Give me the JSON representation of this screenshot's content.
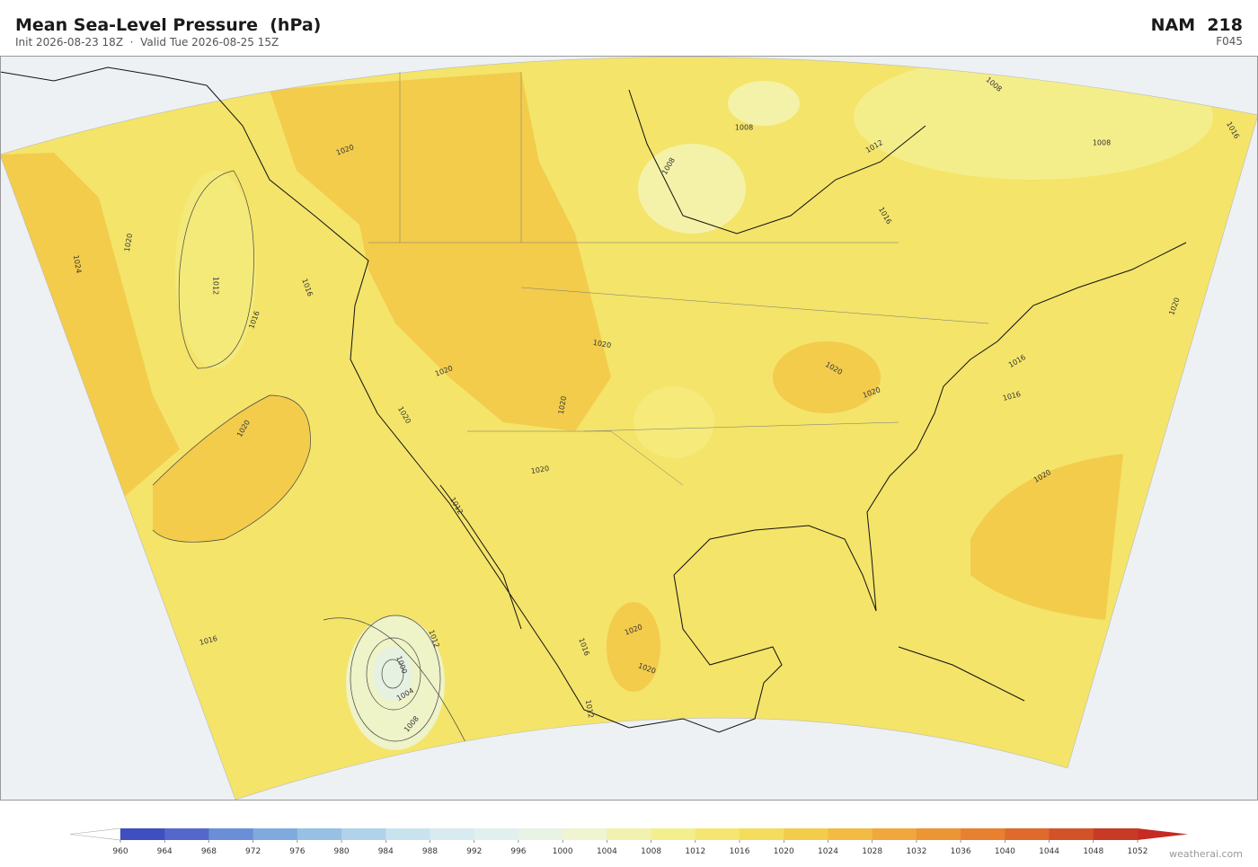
{
  "header": {
    "title": "Mean Sea-Level Pressure  (hPa)",
    "subtitle": "Init 2026-08-23 18Z  ·  Valid Tue 2026-08-25 15Z",
    "model": "NAM  218",
    "forecast_hour": "F045"
  },
  "map": {
    "contour_labels": [
      1020,
      1024,
      1020,
      1012,
      1016,
      1016,
      1020,
      1016,
      1012,
      1000,
      1004,
      1008,
      1008,
      1012,
      1008,
      1008,
      1016,
      1020,
      1016,
      1016,
      1020,
      1020,
      1020,
      1020,
      1020,
      1020,
      1020,
      1020,
      1020,
      1020,
      1016,
      1012,
      1012,
      1008,
      1016
    ]
  },
  "colorbar": {
    "ticks": [
      960,
      964,
      968,
      972,
      976,
      980,
      984,
      988,
      992,
      996,
      1000,
      1004,
      1008,
      1012,
      1016,
      1020,
      1024,
      1028,
      1032,
      1036,
      1040,
      1044,
      1048,
      1052
    ],
    "colors": [
      "#3f4fbf",
      "#5468cc",
      "#6a8fd6",
      "#7faadd",
      "#97c0e4",
      "#b0d3ea",
      "#c8e2ee",
      "#d8ebf0",
      "#e1f0ee",
      "#e8f3e6",
      "#eef5d0",
      "#f1f1b0",
      "#f3ee8e",
      "#f4e670",
      "#f4dc5c",
      "#f3cc4c",
      "#f2bb43",
      "#f0a83c",
      "#ec9535",
      "#e7802f",
      "#df6a2b",
      "#d45228",
      "#c63a26"
    ],
    "under_color": "#ffffff",
    "over_color": "#c62a22"
  },
  "watermark": "weatherai.com"
}
